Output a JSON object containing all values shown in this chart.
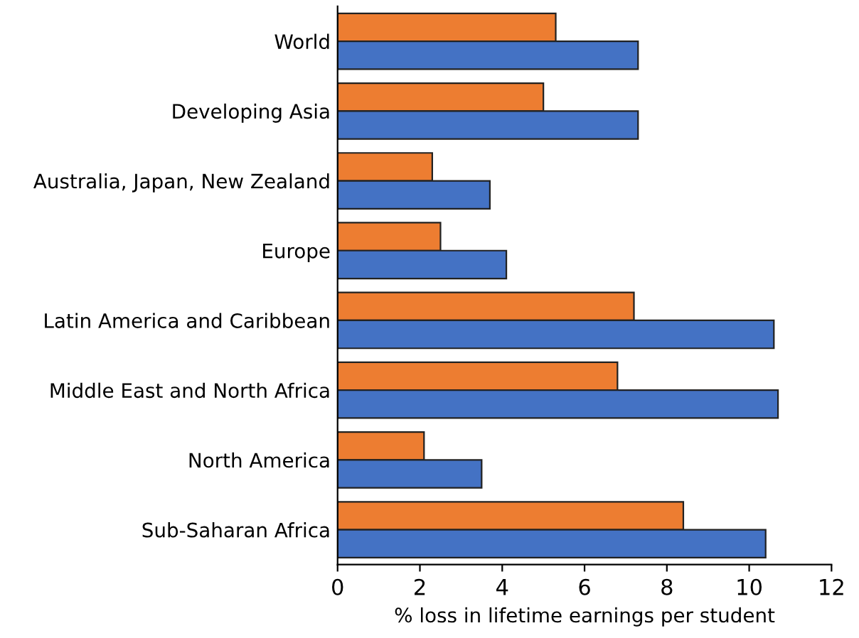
{
  "chart_data": {
    "type": "bar",
    "orientation": "horizontal",
    "xlabel": "% loss in lifetime earnings per student",
    "categories": [
      "World",
      "Developing Asia",
      "Australia, Japan, New Zealand",
      "Europe",
      "Latin America and Caribbean",
      "Middle East and North Africa",
      "North America",
      "Sub-Saharan Africa"
    ],
    "series": [
      {
        "color": "#ed7d31",
        "values": [
          5.3,
          5.0,
          2.3,
          2.5,
          7.2,
          6.8,
          2.1,
          8.4
        ]
      },
      {
        "color": "#4472c4",
        "values": [
          7.3,
          7.3,
          3.7,
          4.1,
          10.6,
          10.7,
          3.5,
          10.4
        ]
      }
    ],
    "xlim": [
      0,
      12
    ],
    "xticks": [
      0,
      2,
      4,
      6,
      8,
      10,
      12
    ],
    "grid": false,
    "legend": false
  }
}
